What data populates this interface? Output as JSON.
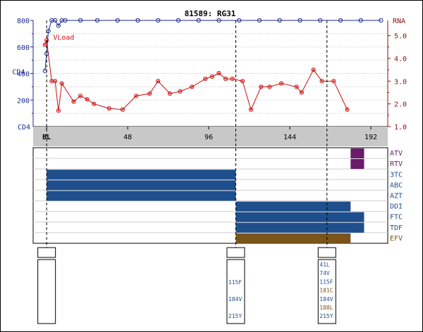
{
  "chart_data": {
    "type": "line",
    "title": "81589: RG31",
    "colors": {
      "cd4": "#1a2a8f",
      "rna": "#cc1010",
      "nrti": "#1f4e8c",
      "pi": "#6a1b6a",
      "nnrti": "#7a5418",
      "axis_band": "#c8c8c8"
    },
    "x_ticks": [
      "BL",
      "48",
      "96",
      "144",
      "192"
    ],
    "x_tick_values": [
      0,
      48,
      96,
      144,
      192
    ],
    "xlim": [
      -8,
      202
    ],
    "left_axis": {
      "label": "CD4",
      "ticks": [
        "800",
        "600",
        "400",
        "200"
      ],
      "ylim": [
        0,
        800
      ]
    },
    "right_axis": {
      "label": "RNA",
      "ticks": [
        "5.0",
        "4.0",
        "3.0",
        "2.0",
        "1.0"
      ],
      "ylim": [
        1.0,
        5.67
      ]
    },
    "series": [
      {
        "name": "CD4",
        "axis": "left",
        "x": [
          -1,
          0,
          1,
          3,
          5,
          7,
          9,
          11,
          20,
          30,
          42,
          54,
          66,
          78,
          90,
          102,
          114,
          126,
          138,
          150,
          162,
          174,
          186,
          198
        ],
        "y": [
          420,
          550,
          720,
          800,
          800,
          760,
          800,
          800,
          800,
          800,
          800,
          800,
          800,
          800,
          800,
          800,
          800,
          800,
          800,
          800,
          800,
          800,
          800,
          800
        ]
      },
      {
        "name": "VLoad",
        "axis": "right",
        "x": [
          -1,
          0,
          3,
          5,
          7,
          9,
          16,
          20,
          24,
          28,
          37,
          45,
          53,
          61,
          66,
          73,
          79,
          86,
          94,
          98,
          102,
          106,
          110,
          116,
          121,
          127,
          132,
          139,
          148,
          151,
          158,
          163,
          170,
          178
        ],
        "y": [
          4.6,
          4.8,
          3.0,
          3.0,
          1.7,
          2.9,
          2.1,
          2.35,
          2.2,
          2.0,
          1.8,
          1.75,
          2.35,
          2.45,
          3.0,
          2.45,
          2.55,
          2.75,
          3.1,
          3.2,
          3.35,
          3.1,
          3.1,
          3.0,
          1.75,
          2.75,
          2.75,
          2.9,
          2.75,
          2.5,
          3.5,
          3.0,
          3.0,
          1.75
        ]
      }
    ],
    "annotations": [
      {
        "text": "VLoad",
        "x": 3,
        "y_rna": 4.95
      },
      {
        "text": "CD4",
        "x": -12,
        "y_cd4": 415
      }
    ],
    "reference_lines_x": [
      0,
      112,
      166
    ],
    "regimen": {
      "drugs": [
        "ATV",
        "RTV",
        "3TC",
        "ABC",
        "AZT",
        "DDI",
        "FTC",
        "TDF",
        "EFV"
      ],
      "drug_class": [
        "pi",
        "pi",
        "nrti",
        "nrti",
        "nrti",
        "nrti",
        "nrti",
        "nrti",
        "nnrti"
      ],
      "bars": [
        {
          "drug": "ATV",
          "start": 180,
          "end": 188
        },
        {
          "drug": "RTV",
          "start": 180,
          "end": 188
        },
        {
          "drug": "3TC",
          "start": 0,
          "end": 112
        },
        {
          "drug": "ABC",
          "start": 0,
          "end": 112
        },
        {
          "drug": "AZT",
          "start": 0,
          "end": 112
        },
        {
          "drug": "DDI",
          "start": 112,
          "end": 180
        },
        {
          "drug": "FTC",
          "start": 112,
          "end": 188
        },
        {
          "drug": "TDF",
          "start": 112,
          "end": 188
        },
        {
          "drug": "EFV",
          "start": 112,
          "end": 180
        }
      ]
    },
    "genotypes": [
      {
        "x": 0,
        "mutations": []
      },
      {
        "x": 112,
        "mutations": [
          {
            "text": "115F",
            "class": "nrti"
          },
          {
            "text": "184V",
            "class": "nrti"
          },
          {
            "text": "215Y",
            "class": "nrti"
          }
        ]
      },
      {
        "x": 166,
        "mutations": [
          {
            "text": "41L",
            "class": "nrti"
          },
          {
            "text": "74V",
            "class": "nrti"
          },
          {
            "text": "115F",
            "class": "nrti"
          },
          {
            "text": "181C",
            "class": "nnrti"
          },
          {
            "text": "184V",
            "class": "nrti"
          },
          {
            "text": "188L",
            "class": "nnrti"
          },
          {
            "text": "215Y",
            "class": "nrti"
          }
        ]
      }
    ]
  }
}
